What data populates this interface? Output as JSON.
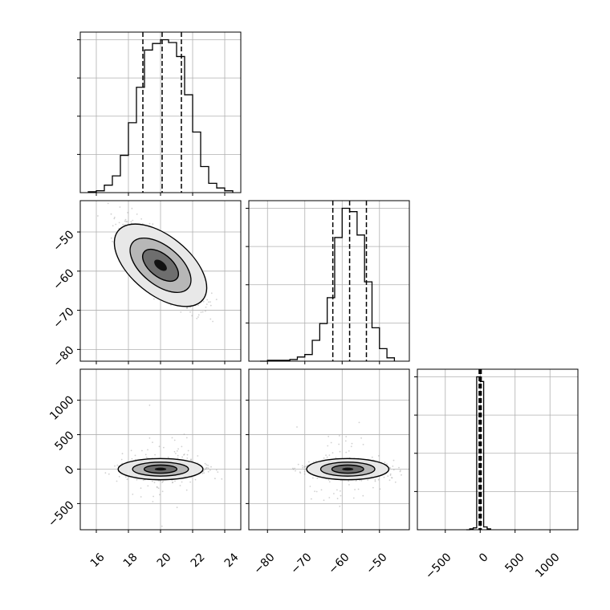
{
  "chart_data": {
    "type": "corner",
    "parameters": [
      "",
      "",
      ""
    ],
    "histograms": [
      {
        "parameter_index": 0,
        "xlim": [
          15.0,
          25.0
        ],
        "quantiles": [
          18.9,
          20.1,
          21.3
        ],
        "bin_edges": [
          15.5,
          16.0,
          16.5,
          17.0,
          17.5,
          18.0,
          18.5,
          19.0,
          19.5,
          20.0,
          20.5,
          21.0,
          21.5,
          22.0,
          22.5,
          23.0,
          23.5,
          24.0,
          24.5
        ],
        "counts": [
          1,
          2,
          8,
          18,
          40,
          75,
          113,
          153,
          160,
          164,
          161,
          146,
          105,
          65,
          28,
          10,
          5,
          2
        ],
        "grid": true
      },
      {
        "parameter_index": 1,
        "xlim": [
          -85.0,
          -42.0
        ],
        "quantiles": [
          -62.5,
          -58.0,
          -53.5
        ],
        "bin_edges": [
          -82.0,
          -80.0,
          -78.0,
          -76.0,
          -74.0,
          -72.0,
          -70.0,
          -68.0,
          -66.0,
          -64.0,
          -62.0,
          -60.0,
          -58.0,
          -56.0,
          -54.0,
          -52.0,
          -50.0,
          -48.0,
          -46.0
        ],
        "counts": [
          0,
          1,
          1,
          1,
          2,
          5,
          8,
          25,
          45,
          76,
          148,
          183,
          179,
          151,
          95,
          40,
          15,
          4
        ],
        "grid": true
      },
      {
        "parameter_index": 2,
        "xlim": [
          -900,
          1400
        ],
        "quantiles": [
          -15,
          0,
          15
        ],
        "bin_edges": [
          -200,
          -150,
          -100,
          -50,
          0,
          50,
          100,
          150
        ],
        "counts": [
          0,
          1,
          2,
          165,
          160,
          3,
          1
        ],
        "grid": true
      }
    ],
    "scatter_panels": [
      {
        "x_index": 0,
        "y_index": 1,
        "xlim": [
          15.0,
          25.0
        ],
        "ylim": [
          -83.0,
          -42.0
        ],
        "center": [
          20.0,
          -58.5
        ],
        "spread": [
          1.2,
          5.0
        ],
        "correlation": -0.8,
        "density_levels": [
          0.39,
          0.86,
          0.99
        ],
        "grid": true
      },
      {
        "x_index": 0,
        "y_index": 2,
        "xlim": [
          15.0,
          25.0
        ],
        "ylim": [
          -880,
          1450
        ],
        "center": [
          20.0,
          0
        ],
        "spread": [
          1.2,
          70
        ],
        "correlation": 0.0,
        "density_levels": [
          0.39,
          0.86,
          0.99
        ],
        "grid": true
      },
      {
        "x_index": 1,
        "y_index": 2,
        "xlim": [
          -85.0,
          -42.0
        ],
        "ylim": [
          -880,
          1450
        ],
        "center": [
          -58.5,
          0
        ],
        "spread": [
          5.0,
          70
        ],
        "correlation": 0.0,
        "density_levels": [
          0.39,
          0.86,
          0.99
        ],
        "grid": true
      }
    ],
    "ticks": {
      "x0": [
        "16",
        "18",
        "20",
        "22",
        "24"
      ],
      "x1": [
        "−80",
        "−70",
        "−60",
        "−50"
      ],
      "x2": [
        "−500",
        "0",
        "500",
        "1000"
      ],
      "y1": [
        "−50",
        "−60",
        "−70",
        "−80"
      ],
      "y2": [
        "1000",
        "500",
        "0",
        "−500"
      ]
    },
    "tick_values": {
      "x0": [
        16,
        18,
        20,
        22,
        24
      ],
      "x1": [
        -80,
        -70,
        -60,
        -50
      ],
      "x2": [
        -500,
        0,
        500,
        1000
      ],
      "y1": [
        -50,
        -60,
        -70,
        -80
      ],
      "y2": [
        1000,
        500,
        0,
        -500
      ]
    },
    "colors": {
      "line": "#000000",
      "grid": "#b0b0b0",
      "frame": "#000000"
    }
  }
}
